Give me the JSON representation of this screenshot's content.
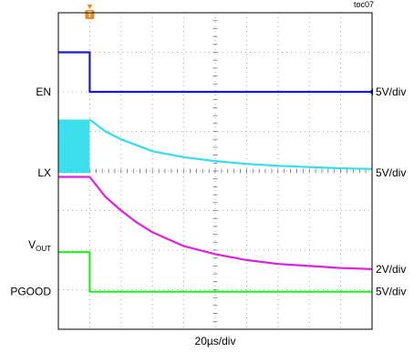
{
  "chart_data": {
    "type": "line",
    "title": "toc07",
    "xlabel": "20µs/div",
    "x_divisions": 10,
    "y_divisions": 8,
    "grid": true,
    "trigger_marker": "T",
    "trigger_time_div": 1.0,
    "colors": {
      "EN": "#1a1ad0",
      "LX": "#33ddee",
      "VOUT": "#e020e0",
      "PGOOD": "#22ee22",
      "trigger": "#f08a20"
    },
    "series": [
      {
        "name": "EN",
        "label_main": "EN",
        "label_sub": "",
        "scale": "5V/div",
        "x_div": [
          0,
          1.0,
          1.0,
          10
        ],
        "y_div": [
          7.0,
          7.0,
          6.0,
          6.0
        ]
      },
      {
        "name": "LX",
        "label_main": "LX",
        "label_sub": "",
        "scale": "5V/div",
        "switching_until_div": 1.0,
        "x_div": [
          1.0,
          1.5,
          2,
          2.5,
          3,
          4,
          5,
          6,
          7,
          8,
          9,
          10
        ],
        "y_div": [
          5.3,
          5.0,
          4.8,
          4.65,
          4.5,
          4.35,
          4.25,
          4.18,
          4.13,
          4.1,
          4.07,
          4.05
        ]
      },
      {
        "name": "VOUT",
        "label_main": "V",
        "label_sub": "OUT",
        "scale": "2V/div",
        "x_div": [
          0,
          1.0,
          1.5,
          2,
          2.5,
          3,
          4,
          5,
          6,
          7,
          8,
          9,
          10
        ],
        "y_div": [
          3.85,
          3.85,
          3.35,
          3.0,
          2.7,
          2.45,
          2.1,
          1.9,
          1.75,
          1.65,
          1.6,
          1.55,
          1.52
        ]
      },
      {
        "name": "PGOOD",
        "label_main": "PGOOD",
        "label_sub": "",
        "scale": "5V/div",
        "x_div": [
          0,
          1.0,
          1.0,
          10
        ],
        "y_div": [
          1.95,
          1.95,
          0.95,
          0.95
        ]
      }
    ]
  }
}
